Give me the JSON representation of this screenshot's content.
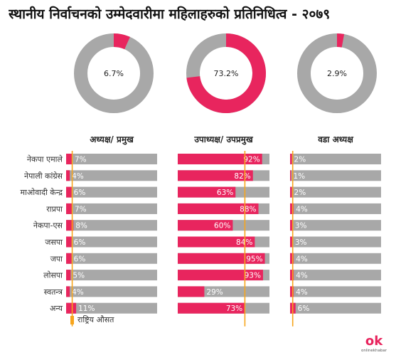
{
  "colors": {
    "accent": "#e8255e",
    "track": "#a8a8a8",
    "marker": "#f7a51c",
    "donut_track": "#a8a8a8"
  },
  "legend": {
    "national_average_label": "राष्ट्रिय औसत"
  },
  "logo": {
    "text": "ok",
    "subtext": "onlinekhabar"
  },
  "chart_data": {
    "type": "bar",
    "title": "स्थानीय निर्वाचनको उम्मेदवारीमा महिलाहरुको प्रतिनिधित्व - २०७९",
    "categories": [
      "नेकपा एमाले",
      "नेपाली कांग्रेस",
      "माओवादी केन्द्र",
      "राप्रपा",
      "नेकपा-एस",
      "जसपा",
      "जपा",
      "लोसपा",
      "स्वतन्त्र",
      "अन्य"
    ],
    "panels": [
      {
        "title": "अध्यक्ष/ प्रमुख",
        "national_average": 6.7,
        "national_average_label": "6.7%",
        "values": [
          7,
          4,
          6,
          7,
          8,
          6,
          6,
          5,
          4,
          11
        ],
        "labels": [
          "7%",
          "4%",
          "6%",
          "7%",
          "8%",
          "6%",
          "6%",
          "5%",
          "4%",
          "11%"
        ]
      },
      {
        "title": "उपाध्यक्ष/ उपप्रमुख",
        "national_average": 73.2,
        "national_average_label": "73.2%",
        "values": [
          92,
          82,
          63,
          88,
          60,
          84,
          95,
          93,
          29,
          73
        ],
        "labels": [
          "92%",
          "82%",
          "63%",
          "88%",
          "60%",
          "84%",
          "95%",
          "93%",
          "29%",
          "73%"
        ]
      },
      {
        "title": "वडा अध्यक्ष",
        "national_average": 2.9,
        "national_average_label": "2.9%",
        "values": [
          2,
          1,
          2,
          4,
          3,
          3,
          4,
          4,
          4,
          6
        ],
        "labels": [
          "2%",
          "1%",
          "2%",
          "4%",
          "3%",
          "3%",
          "4%",
          "4%",
          "4%",
          "6%"
        ]
      }
    ],
    "xlim": [
      0,
      100
    ]
  }
}
